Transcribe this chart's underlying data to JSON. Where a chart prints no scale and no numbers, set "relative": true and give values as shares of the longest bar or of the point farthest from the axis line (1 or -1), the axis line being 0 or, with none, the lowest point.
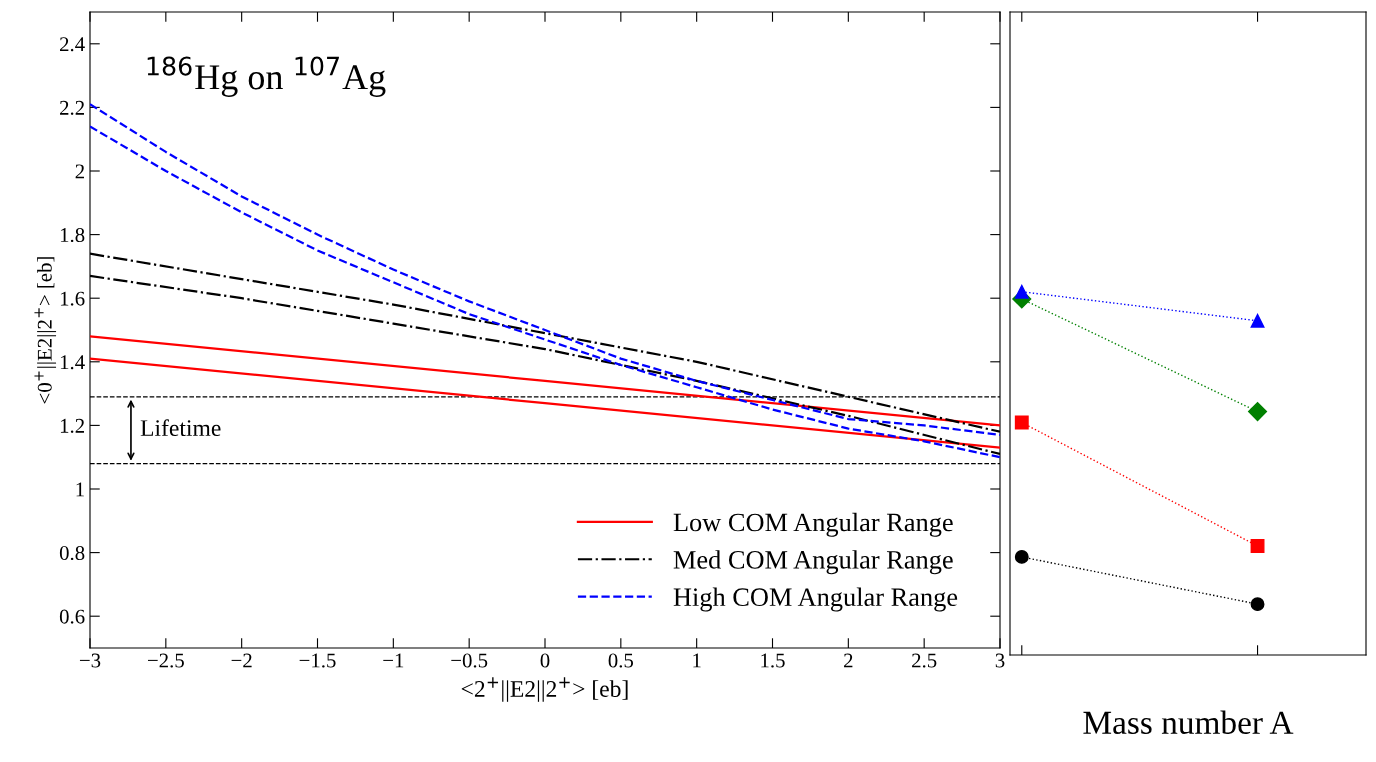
{
  "chart_data": [
    {
      "type": "line",
      "title": "$^{186}$Hg on $^{107}$Ag",
      "xlabel": "<2$^{+}$||E2||2$^{+}$> [eb]",
      "ylabel": "<0$^{+}$||E2||2$^{+}$> [eb]",
      "xlim": [
        -3,
        3
      ],
      "ylim": [
        0.5,
        2.5
      ],
      "xticks": [
        {
          "value": -3,
          "label": "−3"
        },
        {
          "value": -2.5,
          "label": "−2.5"
        },
        {
          "value": -2,
          "label": "−2"
        },
        {
          "value": -1.5,
          "label": "−1.5"
        },
        {
          "value": -1,
          "label": "−1"
        },
        {
          "value": -0.5,
          "label": "−0.5"
        },
        0,
        0.5,
        1,
        1.5,
        2,
        2.5,
        3
      ],
      "yticks": [
        0.6,
        0.8,
        1,
        1.2,
        1.4,
        1.6,
        1.8,
        2,
        2.2,
        2.4
      ],
      "legend": "bottom right",
      "series": [
        {
          "name": "Low COM Angular Range",
          "color": "#ff0000",
          "line_style": "solid",
          "x": [
            -3,
            0,
            3
          ],
          "values": [
            1.48,
            1.34,
            1.2
          ]
        },
        {
          "color": "#ff0000",
          "line_style": "solid",
          "x": [
            -3,
            0,
            3
          ],
          "values": [
            1.41,
            1.27,
            1.13
          ]
        },
        {
          "name": "Med COM Angular Range",
          "color": "#000000",
          "line_style": "dashdot",
          "x": [
            -3,
            -2,
            -1,
            0,
            1,
            2,
            3
          ],
          "values": [
            1.74,
            1.66,
            1.58,
            1.49,
            1.4,
            1.29,
            1.18
          ]
        },
        {
          "color": "#000000",
          "line_style": "dashdot",
          "x": [
            -3,
            -2,
            -1,
            0,
            1,
            2,
            3
          ],
          "values": [
            1.67,
            1.6,
            1.52,
            1.44,
            1.34,
            1.23,
            1.11
          ]
        },
        {
          "name": "High COM Angular Range",
          "color": "#0000ff",
          "line_style": "dashed",
          "x": [
            -3,
            -2.5,
            -2,
            -1.5,
            -1,
            -0.5,
            0,
            0.5,
            1,
            1.5,
            2,
            2.5,
            3
          ],
          "values": [
            2.21,
            2.06,
            1.92,
            1.8,
            1.69,
            1.59,
            1.5,
            1.41,
            1.34,
            1.28,
            1.22,
            1.2,
            1.17
          ]
        },
        {
          "color": "#0000ff",
          "line_style": "dashed",
          "x": [
            -3,
            -2.5,
            -2,
            -1.5,
            -1,
            -0.5,
            0,
            0.5,
            1,
            1.5,
            2,
            2.5,
            3
          ],
          "values": [
            2.14,
            2.0,
            1.87,
            1.75,
            1.65,
            1.55,
            1.47,
            1.39,
            1.32,
            1.25,
            1.19,
            1.15,
            1.1
          ]
        }
      ],
      "ref_lines": [
        {
          "axis": "y",
          "value": 1.29,
          "color": "#000000",
          "line_style": "dashed"
        },
        {
          "axis": "y",
          "value": 1.08,
          "color": "#000000",
          "line_style": "dashed"
        }
      ],
      "annotations": [
        "Lifetime"
      ]
    },
    {
      "type": "line",
      "relative": true,
      "xlabel": "Mass number A",
      "categories": [
        null,
        null
      ],
      "line_style": "dotted",
      "tick_labels": false,
      "series": [
        {
          "color": "#008000",
          "marker": "diamond",
          "values": [
            0.98,
            0.67
          ]
        },
        {
          "color": "#0000ff",
          "marker": "triangle",
          "values": [
            1.0,
            0.92
          ]
        },
        {
          "color": "#ff0000",
          "marker": "square",
          "values": [
            0.64,
            0.3
          ]
        },
        {
          "color": "#000000",
          "marker": "circle",
          "values": [
            0.27,
            0.14
          ]
        }
      ]
    }
  ]
}
